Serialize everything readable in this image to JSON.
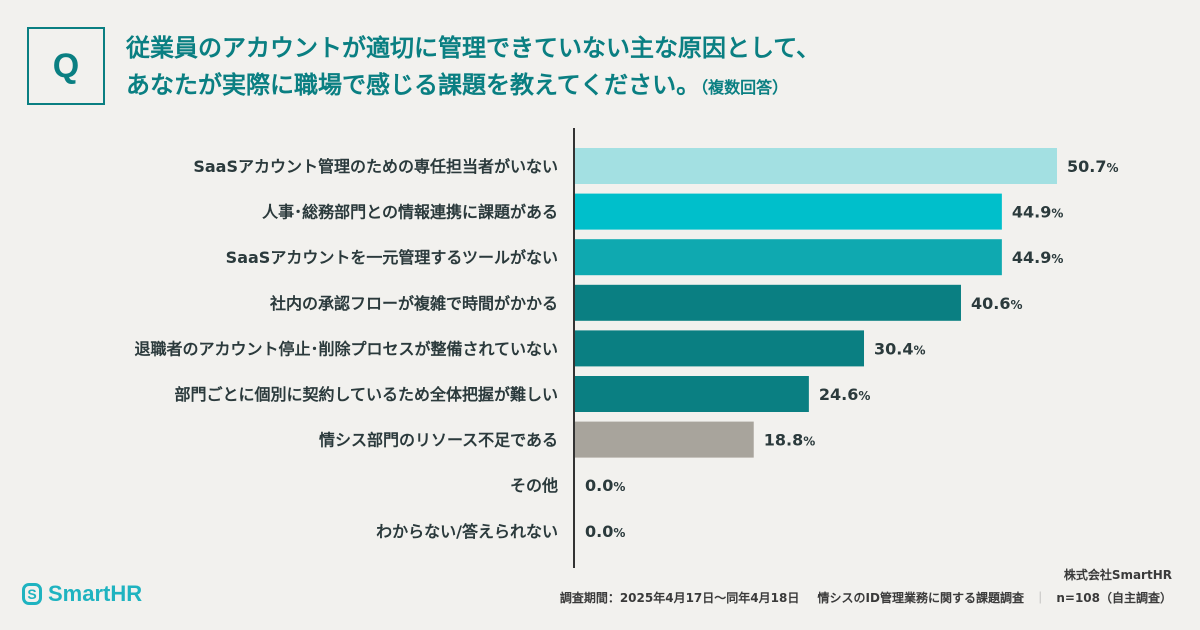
{
  "header": {
    "q_label": "Q",
    "title_line1": "従業員のアカウントが適切に管理できていない主な原因として、",
    "title_line2": "あなたが実際に職場で感じる課題を教えてください。",
    "title_note": "（複数回答）"
  },
  "chart_data": {
    "type": "bar",
    "orientation": "horizontal",
    "categories": [
      "SaaSアカウント管理のための専任担当者がいない",
      "人事･総務部門との情報連携に課題がある",
      "SaaSアカウントを一元管理するツールがない",
      "社内の承認フローが複雑で時間がかかる",
      "退職者のアカウント停止･削除プロセスが整備されていない",
      "部門ごとに個別に契約しているため全体把握が難しい",
      "情シス部門のリソース不足である",
      "その他",
      "わからない/答えられない"
    ],
    "values": [
      50.7,
      44.9,
      44.9,
      40.6,
      30.4,
      24.6,
      18.8,
      0.0,
      0.0
    ],
    "value_labels": [
      "50.7",
      "44.9",
      "44.9",
      "40.6",
      "30.4",
      "24.6",
      "18.8",
      "0.0",
      "0.0"
    ],
    "unit": "%",
    "colors": [
      "#a3e0e2",
      "#00bfcb",
      "#0fa9b0",
      "#0a7f82",
      "#0a7f82",
      "#0a7f82",
      "#a8a49c",
      "#a8a49c",
      "#a8a49c"
    ],
    "xlim": [
      0,
      50.7
    ],
    "grid": false,
    "title": "",
    "xlabel": "",
    "ylabel": ""
  },
  "footer": {
    "logo_text": "SmartHR",
    "logo_icon": "smarthr-s-icon",
    "company": "株式会社SmartHR",
    "survey_period": "調査期間：2025年4月17日～同年4月18日",
    "survey_name": "情シスのID管理業務に関する課題調査",
    "separator": "｜",
    "sample": "n=108（自主調査）"
  }
}
